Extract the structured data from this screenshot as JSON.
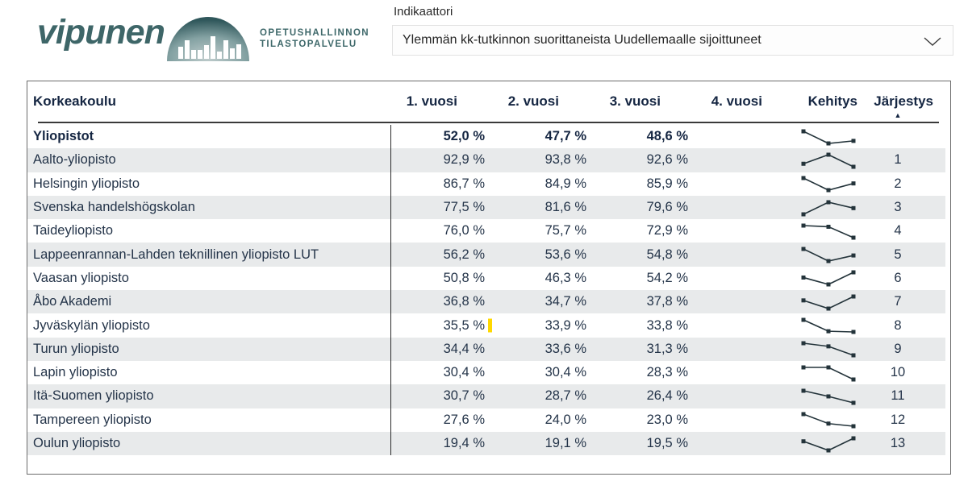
{
  "logo": {
    "brand": "vipunen",
    "tagline_line1": "OPETUSHALLINNON",
    "tagline_line2": "TILASTOPALVELU"
  },
  "indicator": {
    "label": "Indikaattori",
    "value": "Ylemmän kk-tutkinnon suorittaneista Uudellemaalle sijoittuneet"
  },
  "table": {
    "columns": [
      "Korkeakoulu",
      "1. vuosi",
      "2. vuosi",
      "3. vuosi",
      "4. vuosi",
      "Kehitys",
      "Järjestys"
    ],
    "sorted_by": "Järjestys",
    "sort_icon": "▲",
    "rows": [
      {
        "name": "Yliopistot",
        "bold": true,
        "cells": [
          "52,0 %",
          "47,7 %",
          "48,6 %",
          ""
        ],
        "values": [
          52.0,
          47.7,
          48.6
        ],
        "rank": ""
      },
      {
        "name": "Aalto-yliopisto",
        "cells": [
          "92,9 %",
          "93,8 %",
          "92,6 %",
          ""
        ],
        "values": [
          92.9,
          93.8,
          92.6
        ],
        "rank": "1"
      },
      {
        "name": "Helsingin yliopisto",
        "cells": [
          "86,7 %",
          "84,9 %",
          "85,9 %",
          ""
        ],
        "values": [
          86.7,
          84.9,
          85.9
        ],
        "rank": "2"
      },
      {
        "name": "Svenska handelshögskolan",
        "cells": [
          "77,5 %",
          "81,6 %",
          "79,6 %",
          ""
        ],
        "values": [
          77.5,
          81.6,
          79.6
        ],
        "rank": "3"
      },
      {
        "name": "Taideyliopisto",
        "cells": [
          "76,0 %",
          "75,7 %",
          "72,9 %",
          ""
        ],
        "values": [
          76.0,
          75.7,
          72.9
        ],
        "rank": "4"
      },
      {
        "name": "Lappeenrannan-Lahden teknillinen yliopisto LUT",
        "cells": [
          "56,2 %",
          "53,6 %",
          "54,8 %",
          ""
        ],
        "values": [
          56.2,
          53.6,
          54.8
        ],
        "rank": "5"
      },
      {
        "name": "Vaasan yliopisto",
        "cells": [
          "50,8 %",
          "46,3 %",
          "54,2 %",
          ""
        ],
        "values": [
          50.8,
          46.3,
          54.2
        ],
        "rank": "6"
      },
      {
        "name": "Åbo Akademi",
        "cells": [
          "36,8 %",
          "34,7 %",
          "37,8 %",
          ""
        ],
        "values": [
          36.8,
          34.7,
          37.8
        ],
        "rank": "7"
      },
      {
        "name": "Jyväskylän yliopisto",
        "marker": true,
        "cells": [
          "35,5 %",
          "33,9 %",
          "33,8 %",
          ""
        ],
        "values": [
          35.5,
          33.9,
          33.8
        ],
        "rank": "8"
      },
      {
        "name": "Turun yliopisto",
        "cells": [
          "34,4 %",
          "33,6 %",
          "31,3 %",
          ""
        ],
        "values": [
          34.4,
          33.6,
          31.3
        ],
        "rank": "9"
      },
      {
        "name": "Lapin yliopisto",
        "cells": [
          "30,4 %",
          "30,4 %",
          "28,3 %",
          ""
        ],
        "values": [
          30.4,
          30.4,
          28.3
        ],
        "rank": "10"
      },
      {
        "name": "Itä-Suomen yliopisto",
        "cells": [
          "30,7 %",
          "28,7 %",
          "26,4 %",
          ""
        ],
        "values": [
          30.7,
          28.7,
          26.4
        ],
        "rank": "11"
      },
      {
        "name": "Tampereen yliopisto",
        "cells": [
          "27,6 %",
          "24,0 %",
          "23,0 %",
          ""
        ],
        "values": [
          27.6,
          24.0,
          23.0
        ],
        "rank": "12"
      },
      {
        "name": "Oulun yliopisto",
        "cells": [
          "19,4 %",
          "19,1 %",
          "19,5 %",
          ""
        ],
        "values": [
          19.4,
          19.1,
          19.5
        ],
        "rank": "13"
      }
    ]
  },
  "colors": {
    "brand_teal": "#3e6668",
    "header_text": "#152642",
    "body_text": "#243449",
    "stripe": "#e8eaeb",
    "sparkline": "#23333a",
    "highlight_yellow": "#ffd800"
  }
}
